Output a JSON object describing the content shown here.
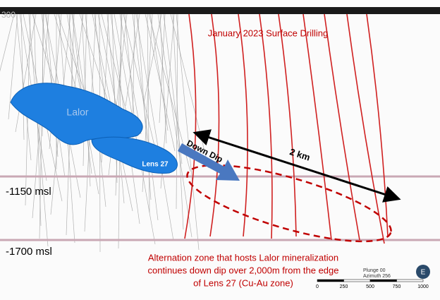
{
  "depth_labels": {
    "top": "300",
    "upper": "-1150 msl",
    "lower": "-1700 msl"
  },
  "title": "January 2023 Surface Drilling",
  "bodies": {
    "lalor": "Lalor",
    "lens27": "Lens 27"
  },
  "arrows": {
    "down_dip": "Down Dip",
    "distance": "2 km"
  },
  "annotation": [
    "Alternation zone that hosts Lalor mineralization",
    "continues down dip over 2,000m from the edge",
    "of Lens 27 (Cu-Au zone)"
  ],
  "orientation": {
    "plunge": "Plunge 00",
    "azimuth": "Azimuth 256",
    "compass": "E"
  },
  "scale_bar": [
    "0",
    "250",
    "500",
    "750",
    "1000"
  ]
}
